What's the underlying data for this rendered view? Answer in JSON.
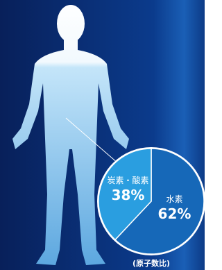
{
  "chart_data": {
    "type": "pie",
    "categories": [
      "水素",
      "炭素・酸素"
    ],
    "values": [
      62,
      38
    ],
    "value_labels": [
      "62%",
      "38%"
    ],
    "colors": [
      "#1668b8",
      "#2a9ee0"
    ],
    "caption": "(原子数比)"
  }
}
